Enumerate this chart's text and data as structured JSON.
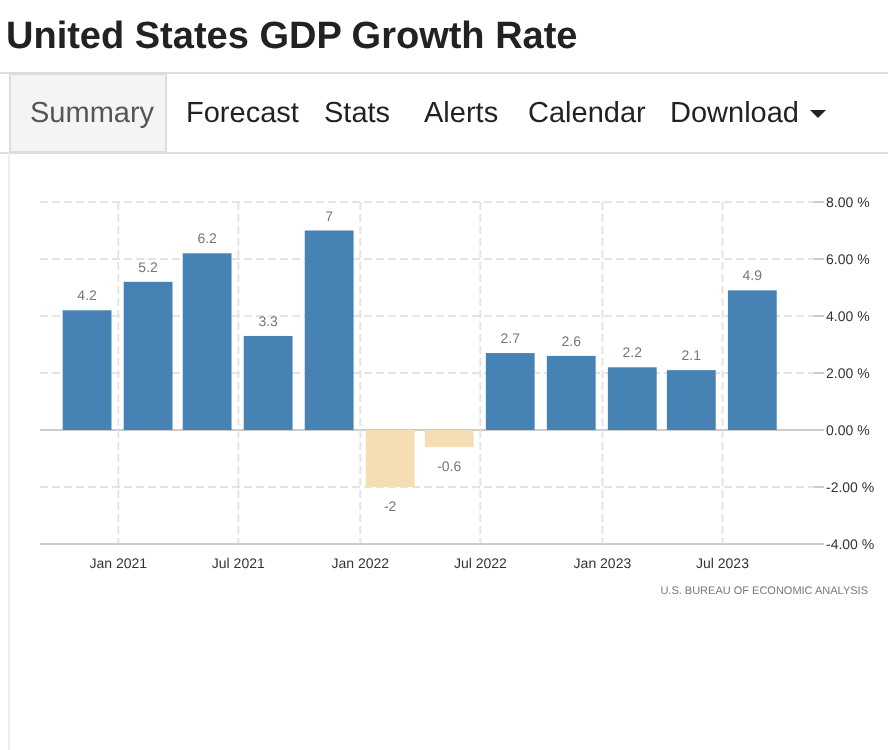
{
  "chart_data": {
    "type": "bar",
    "title": "United States GDP Growth Rate",
    "x": [
      "2020-11-15",
      "2021-02-15",
      "2021-05-15",
      "2021-08-15",
      "2021-11-15",
      "2022-02-15",
      "2022-05-15",
      "2022-08-15",
      "2022-11-15",
      "2023-02-15",
      "2023-05-15",
      "2023-08-15"
    ],
    "values": [
      4.2,
      5.2,
      6.2,
      3.3,
      7,
      -2,
      -0.6,
      2.7,
      2.6,
      2.2,
      2.1,
      4.9
    ],
    "colors": [
      "#4682b4",
      "#4682b4",
      "#4682b4",
      "#4682b4",
      "#4682b4",
      "#f5deb3",
      "#f5deb3",
      "#4682b4",
      "#4682b4",
      "#4682b4",
      "#4682b4",
      "#4682b4"
    ],
    "data_labels": true,
    "xlim": [
      "2020-09-05",
      "2023-11-16"
    ],
    "xticks": [
      {
        "value": "2021-01-01",
        "label": "Jan 2021"
      },
      {
        "value": "2021-07-01",
        "label": "Jul 2021"
      },
      {
        "value": "2022-01-01",
        "label": "Jan 2022"
      },
      {
        "value": "2022-07-01",
        "label": "Jul 2022"
      },
      {
        "value": "2023-01-01",
        "label": "Jan 2023"
      },
      {
        "value": "2023-07-01",
        "label": "Jul 2023"
      }
    ],
    "ylim": [
      -4,
      8
    ],
    "yticks": [
      {
        "value": 8,
        "label": "8.00 %"
      },
      {
        "value": 6,
        "label": "6.00 %"
      },
      {
        "value": 4,
        "label": "4.00 %"
      },
      {
        "value": 2,
        "label": "2.00 %"
      },
      {
        "value": 0,
        "label": "0.00 %"
      },
      {
        "value": -2,
        "label": "-2.00 %"
      },
      {
        "value": -4,
        "label": "-4.00 %"
      }
    ],
    "grid": true,
    "annotations": [
      "Summary",
      "Forecast",
      "Stats",
      "Alerts",
      "Calendar",
      "Download",
      "U.S. BUREAU OF ECONOMIC ANALYSIS"
    ]
  }
}
